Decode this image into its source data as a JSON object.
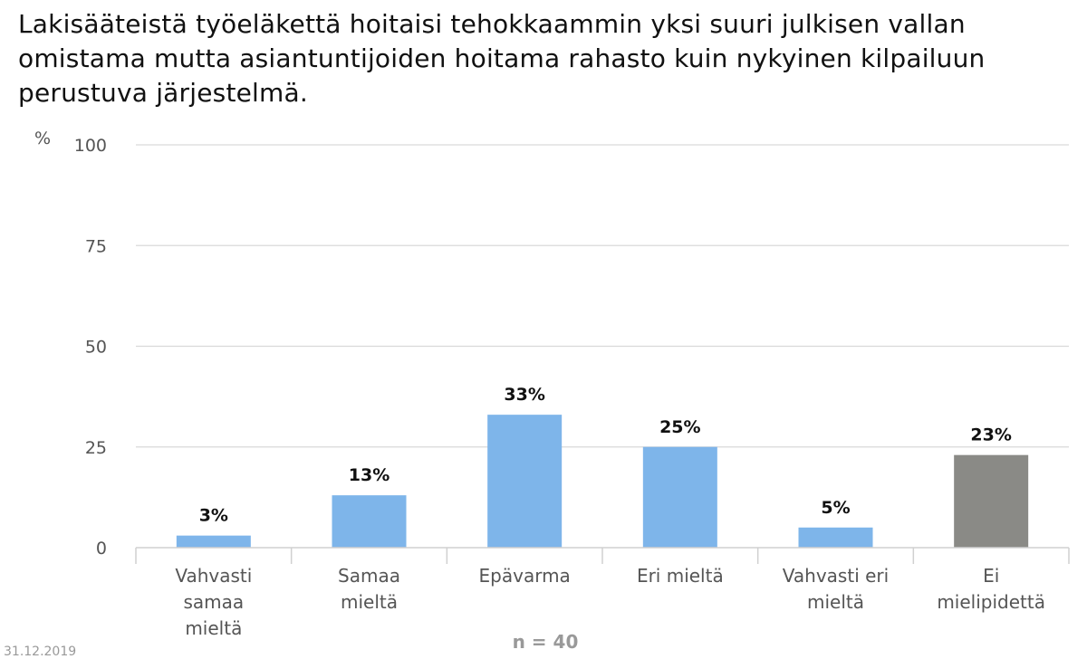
{
  "chart_data": {
    "type": "bar",
    "title": "Lakisääteistä työeläkettä hoitaisi tehokkaammin yksi suuri julkisen vallan omistama mutta asiantuntijoiden hoitama rahasto kuin nykyinen kilpailuun perustuva järjestelmä.",
    "ylabel": "%",
    "ylim": [
      0,
      100
    ],
    "yticks": [
      0,
      25,
      50,
      75,
      100
    ],
    "grid": true,
    "categories": [
      [
        "Vahvasti",
        "samaa",
        "mieltä"
      ],
      [
        "Samaa",
        "mieltä"
      ],
      [
        "Epävarma"
      ],
      [
        "Eri mieltä"
      ],
      [
        "Vahvasti eri",
        "mieltä"
      ],
      [
        "Ei",
        "mielipidettä"
      ]
    ],
    "values": [
      3,
      13,
      33,
      25,
      5,
      23
    ],
    "value_labels": [
      "3%",
      "13%",
      "33%",
      "25%",
      "5%",
      "23%"
    ],
    "bar_colors": [
      "#7eb5ea",
      "#7eb5ea",
      "#7eb5ea",
      "#7eb5ea",
      "#7eb5ea",
      "#8a8a86"
    ],
    "note": "n = 40"
  },
  "footer_date": "31.12.2019"
}
